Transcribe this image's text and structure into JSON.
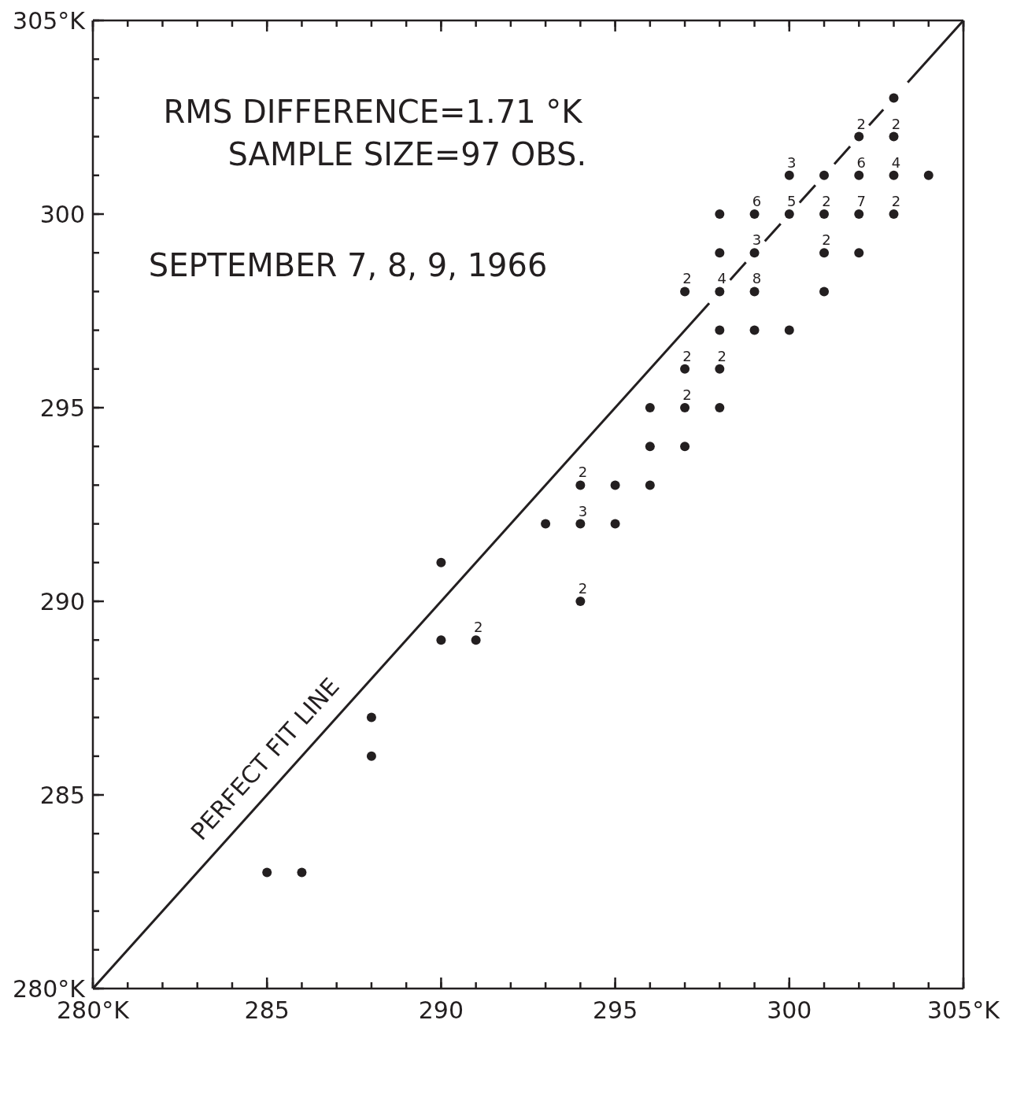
{
  "chart_data": {
    "type": "scatter",
    "xlim": [
      280,
      305
    ],
    "ylim": [
      280,
      305
    ],
    "xticks": [
      {
        "value": 280,
        "label": "280°K"
      },
      {
        "value": 281,
        "label": null
      },
      {
        "value": 282,
        "label": null
      },
      {
        "value": 283,
        "label": null
      },
      {
        "value": 284,
        "label": null
      },
      285,
      {
        "value": 286,
        "label": null
      },
      {
        "value": 287,
        "label": null
      },
      {
        "value": 288,
        "label": null
      },
      {
        "value": 289,
        "label": null
      },
      290,
      {
        "value": 291,
        "label": null
      },
      {
        "value": 292,
        "label": null
      },
      {
        "value": 293,
        "label": null
      },
      {
        "value": 294,
        "label": null
      },
      295,
      {
        "value": 296,
        "label": null
      },
      {
        "value": 297,
        "label": null
      },
      {
        "value": 298,
        "label": null
      },
      {
        "value": 299,
        "label": null
      },
      300,
      {
        "value": 301,
        "label": null
      },
      {
        "value": 302,
        "label": null
      },
      {
        "value": 303,
        "label": null
      },
      {
        "value": 304,
        "label": null
      },
      {
        "value": 305,
        "label": "305°K"
      }
    ],
    "yticks": [
      {
        "value": 280,
        "label": "280°K"
      },
      {
        "value": 281,
        "label": null
      },
      {
        "value": 282,
        "label": null
      },
      {
        "value": 283,
        "label": null
      },
      {
        "value": 284,
        "label": null
      },
      285,
      {
        "value": 286,
        "label": null
      },
      {
        "value": 287,
        "label": null
      },
      {
        "value": 288,
        "label": null
      },
      {
        "value": 289,
        "label": null
      },
      290,
      {
        "value": 291,
        "label": null
      },
      {
        "value": 292,
        "label": null
      },
      {
        "value": 293,
        "label": null
      },
      {
        "value": 294,
        "label": null
      },
      295,
      {
        "value": 296,
        "label": null
      },
      {
        "value": 297,
        "label": null
      },
      {
        "value": 298,
        "label": null
      },
      {
        "value": 299,
        "label": null
      },
      300,
      {
        "value": 301,
        "label": null
      },
      {
        "value": 302,
        "label": null
      },
      {
        "value": 303,
        "label": null
      },
      {
        "value": 304,
        "label": null
      },
      {
        "value": 305,
        "label": "305°K"
      }
    ],
    "series": [
      {
        "color": "#231f20",
        "marker": "circle",
        "x": [
          285,
          286,
          288,
          288,
          290,
          290,
          291,
          293,
          294,
          294,
          294,
          295,
          295,
          296,
          296,
          296,
          297,
          297,
          297,
          297,
          298,
          298,
          298,
          298,
          298,
          298,
          299,
          299,
          299,
          299,
          300,
          300,
          300,
          301,
          301,
          301,
          301,
          302,
          302,
          302,
          302,
          303,
          303,
          303,
          303,
          304
        ],
        "values": [
          283,
          283,
          287,
          286,
          291,
          289,
          289,
          292,
          293,
          292,
          290,
          293,
          292,
          295,
          294,
          293,
          298,
          296,
          295,
          294,
          300,
          299,
          298,
          297,
          296,
          295,
          300,
          299,
          298,
          297,
          301,
          300,
          297,
          301,
          300,
          299,
          298,
          302,
          301,
          300,
          299,
          303,
          302,
          301,
          300,
          301
        ]
      },
      {
        "type": "line",
        "name": "PERFECT FIT LINE",
        "color": "#231f20",
        "line_style": "solid",
        "x": [
          280,
          297.7
        ],
        "values": [
          280,
          297.7
        ]
      },
      {
        "type": "line",
        "color": "#231f20",
        "line_style": "dashed",
        "x": [
          298.3,
          302.7
        ],
        "values": [
          298.3,
          302.7
        ]
      },
      {
        "type": "line",
        "color": "#231f20",
        "line_style": "solid",
        "x": [
          303.4,
          305
        ],
        "values": [
          303.4,
          305
        ]
      }
    ],
    "annotations": [
      "RMS DIFFERENCE=1.71 °K",
      "SAMPLE SIZE=97 OBS.",
      "SEPTEMBER 7, 8, 9, 1966",
      {
        "text": "2",
        "x": 291,
        "y": 289
      },
      {
        "text": "2",
        "x": 294,
        "y": 293
      },
      {
        "text": "3",
        "x": 294,
        "y": 292
      },
      {
        "text": "2",
        "x": 294,
        "y": 290
      },
      {
        "text": "2",
        "x": 297,
        "y": 298
      },
      {
        "text": "2",
        "x": 297,
        "y": 296
      },
      {
        "text": "2",
        "x": 297,
        "y": 295
      },
      {
        "text": "4",
        "x": 298,
        "y": 298
      },
      {
        "text": "2",
        "x": 298,
        "y": 296
      },
      {
        "text": "6",
        "x": 299,
        "y": 300
      },
      {
        "text": "3",
        "x": 299,
        "y": 299
      },
      {
        "text": "8",
        "x": 299,
        "y": 298
      },
      {
        "text": "3",
        "x": 300,
        "y": 301
      },
      {
        "text": "5",
        "x": 300,
        "y": 300
      },
      {
        "text": "2",
        "x": 301,
        "y": 300
      },
      {
        "text": "2",
        "x": 301,
        "y": 299
      },
      {
        "text": "2",
        "x": 302,
        "y": 302
      },
      {
        "text": "6",
        "x": 302,
        "y": 301
      },
      {
        "text": "7",
        "x": 302,
        "y": 300
      },
      {
        "text": "2",
        "x": 303,
        "y": 302
      },
      {
        "text": "4",
        "x": 303,
        "y": 301
      },
      {
        "text": "2",
        "x": 303,
        "y": 300
      }
    ]
  }
}
